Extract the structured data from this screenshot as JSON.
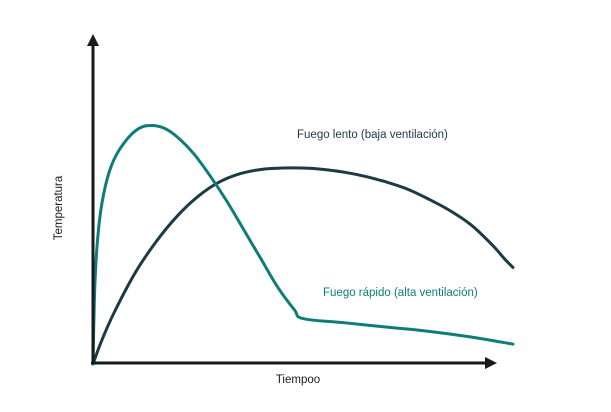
{
  "chart_data": {
    "type": "line",
    "title": "",
    "xlabel": "Tiempoo",
    "ylabel": "Temperatura",
    "grid": false,
    "legend": "none",
    "series": [
      {
        "name": "Fuego lento (baja ventilación)",
        "color": "#1d3a45",
        "x": [
          0,
          2,
          5,
          10,
          15,
          20,
          25,
          30,
          35,
          40,
          45,
          50,
          55,
          60,
          65,
          70,
          75,
          80,
          85,
          90,
          95,
          98,
          100
        ],
        "y": [
          0,
          8,
          18,
          32,
          43,
          52,
          59,
          64,
          67,
          68.5,
          69,
          69,
          68.5,
          67.5,
          66,
          64,
          61.5,
          58,
          54,
          49,
          42,
          37,
          34
        ]
      },
      {
        "name": "Fuego rápido (alta ventilación)",
        "color": "#0e7d78",
        "x": [
          0,
          0.5,
          1.5,
          3,
          5,
          8,
          11,
          14,
          17,
          20,
          24,
          28,
          32,
          36,
          40,
          44,
          48,
          50,
          60,
          70,
          80,
          90,
          100
        ],
        "y": [
          0,
          30,
          50,
          63,
          72,
          79,
          83,
          84,
          83,
          80,
          74,
          66,
          57,
          47,
          37,
          27,
          19,
          16,
          14.5,
          13,
          11.5,
          9.5,
          7
        ]
      }
    ],
    "annotations": [
      {
        "text": "Fuego lento (baja ventilación)",
        "series": 0
      },
      {
        "text": "Fuego rápido (alta ventilación)",
        "series": 1
      }
    ],
    "xlim": [
      0,
      100
    ],
    "ylim": [
      0,
      100
    ]
  }
}
